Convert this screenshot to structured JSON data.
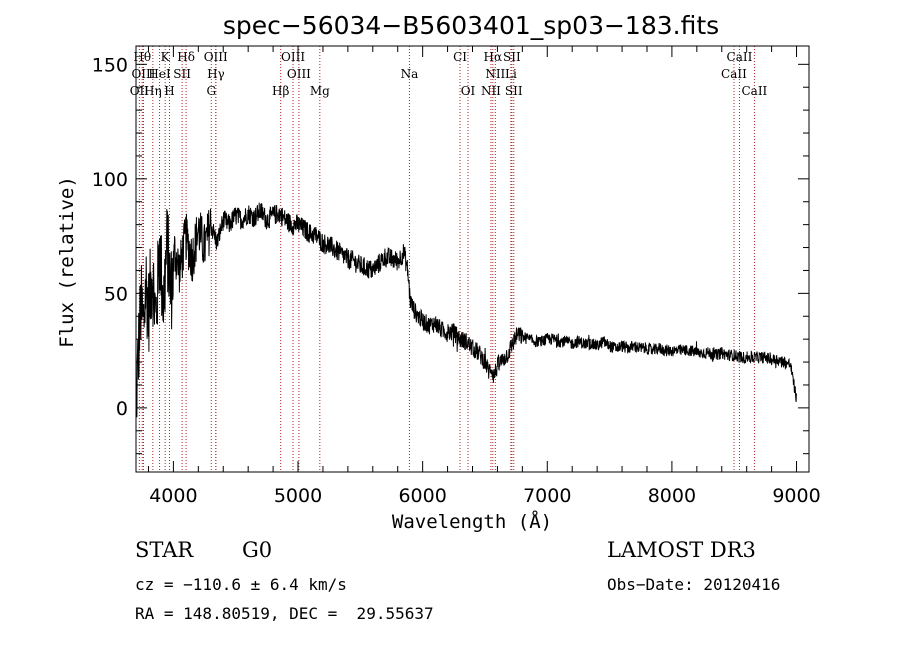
{
  "chart_data": {
    "type": "line",
    "title": "spec−56034−B5603401_sp03−183.fits",
    "xlabel": "Wavelength (Å)",
    "ylabel": "Flux (relative)",
    "xlim": [
      3700,
      9100
    ],
    "ylim": [
      -28,
      158
    ],
    "x_ticks": [
      4000,
      5000,
      6000,
      7000,
      8000,
      9000
    ],
    "y_ticks": [
      0,
      50,
      100,
      150
    ],
    "series": [
      {
        "name": "flux",
        "x": [
          3700,
          3720,
          3740,
          3760,
          3780,
          3800,
          3830,
          3860,
          3890,
          3920,
          3950,
          3980,
          4010,
          4050,
          4100,
          4150,
          4200,
          4250,
          4300,
          4350,
          4400,
          4450,
          4500,
          4550,
          4600,
          4650,
          4700,
          4750,
          4800,
          4850,
          4900,
          4950,
          5000,
          5050,
          5100,
          5150,
          5200,
          5250,
          5300,
          5350,
          5400,
          5450,
          5500,
          5550,
          5600,
          5650,
          5700,
          5750,
          5800,
          5850,
          5880,
          5900,
          5920,
          5950,
          6000,
          6050,
          6100,
          6150,
          6200,
          6250,
          6300,
          6350,
          6400,
          6450,
          6500,
          6530,
          6550,
          6570,
          6600,
          6630,
          6660,
          6690,
          6720,
          6760,
          6800,
          6850,
          6900,
          6950,
          7000,
          7050,
          7100,
          7150,
          7200,
          7250,
          7300,
          7350,
          7400,
          7450,
          7500,
          7550,
          7600,
          7650,
          7700,
          7750,
          7800,
          7850,
          7900,
          7950,
          8000,
          8050,
          8100,
          8150,
          8200,
          8250,
          8300,
          8350,
          8400,
          8450,
          8500,
          8550,
          8600,
          8650,
          8700,
          8750,
          8800,
          8850,
          8900,
          8950,
          8980,
          9000
        ],
        "y": [
          0,
          25,
          45,
          35,
          55,
          42,
          60,
          38,
          70,
          45,
          72,
          50,
          68,
          60,
          75,
          65,
          78,
          70,
          80,
          72,
          82,
          80,
          84,
          82,
          85,
          83,
          86,
          82,
          84,
          85,
          82,
          80,
          80,
          78,
          76,
          75,
          72,
          71,
          69,
          67,
          65,
          64,
          62,
          61,
          60,
          63,
          66,
          65,
          64,
          68,
          60,
          47,
          44,
          41,
          38,
          36,
          37,
          34,
          33,
          33,
          30,
          29,
          26,
          24,
          20,
          16,
          18,
          14,
          18,
          20,
          22,
          24,
          28,
          32,
          31,
          30,
          29,
          29,
          30,
          30,
          29,
          29,
          28,
          29,
          28,
          28,
          27,
          29,
          27,
          26,
          27,
          26,
          27,
          26,
          26,
          25,
          26,
          25,
          25,
          25,
          25,
          25,
          24,
          24,
          24,
          23,
          24,
          23,
          23,
          22,
          22,
          22,
          22,
          22,
          21,
          21,
          20,
          19,
          10,
          4
        ]
      }
    ],
    "spectral_lines": [
      {
        "label": "OII",
        "x": 3727,
        "row": 3
      },
      {
        "label": "Hθ",
        "x": 3750,
        "row": 1
      },
      {
        "label": "OIII",
        "x": 3760,
        "row": 2
      },
      {
        "label": "Hη",
        "x": 3835,
        "row": 3
      },
      {
        "label": "HeI",
        "x": 3889,
        "row": 2
      },
      {
        "label": "K",
        "x": 3934,
        "row": 1
      },
      {
        "label": "H",
        "x": 3969,
        "row": 3
      },
      {
        "label": "SII",
        "x": 4070,
        "row": 2
      },
      {
        "label": "Hδ",
        "x": 4102,
        "row": 1
      },
      {
        "label": "G",
        "x": 4304,
        "row": 3
      },
      {
        "label": "OIII",
        "x": 4340,
        "row": 1
      },
      {
        "label": "Hγ",
        "x": 4341,
        "row": 2
      },
      {
        "label": "Hβ",
        "x": 4861,
        "row": 3
      },
      {
        "label": "OIII",
        "x": 4960,
        "row": 1
      },
      {
        "label": "OIII",
        "x": 5007,
        "row": 2
      },
      {
        "label": "Mg",
        "x": 5175,
        "row": 3
      },
      {
        "label": "Na",
        "x": 5894,
        "row": 2
      },
      {
        "label": "CI",
        "x": 6300,
        "row": 1
      },
      {
        "label": "OI",
        "x": 6364,
        "row": 3
      },
      {
        "label": "NII",
        "x": 6548,
        "row": 3
      },
      {
        "label": "Hα",
        "x": 6563,
        "row": 1
      },
      {
        "label": "NII",
        "x": 6583,
        "row": 2
      },
      {
        "label": "SII",
        "x": 6716,
        "row": 1
      },
      {
        "label": "Li",
        "x": 6708,
        "row": 2
      },
      {
        "label": "SII",
        "x": 6731,
        "row": 3
      },
      {
        "label": "CaII",
        "x": 8498,
        "row": 2
      },
      {
        "label": "CaII",
        "x": 8542,
        "row": 1
      },
      {
        "label": "CaII",
        "x": 8662,
        "row": 3
      }
    ]
  },
  "info": {
    "object_class": "STAR",
    "subclass": "G0",
    "survey": "LAMOST DR3",
    "cz": "cz = −110.6 ± 6.4 km/s",
    "obs_date": "Obs−Date: 20120416",
    "coords": "RA = 148.80519, DEC =  29.55637"
  },
  "colors": {
    "axis": "#000000",
    "spectrum": "#000000",
    "line_marker": "#b22222"
  }
}
